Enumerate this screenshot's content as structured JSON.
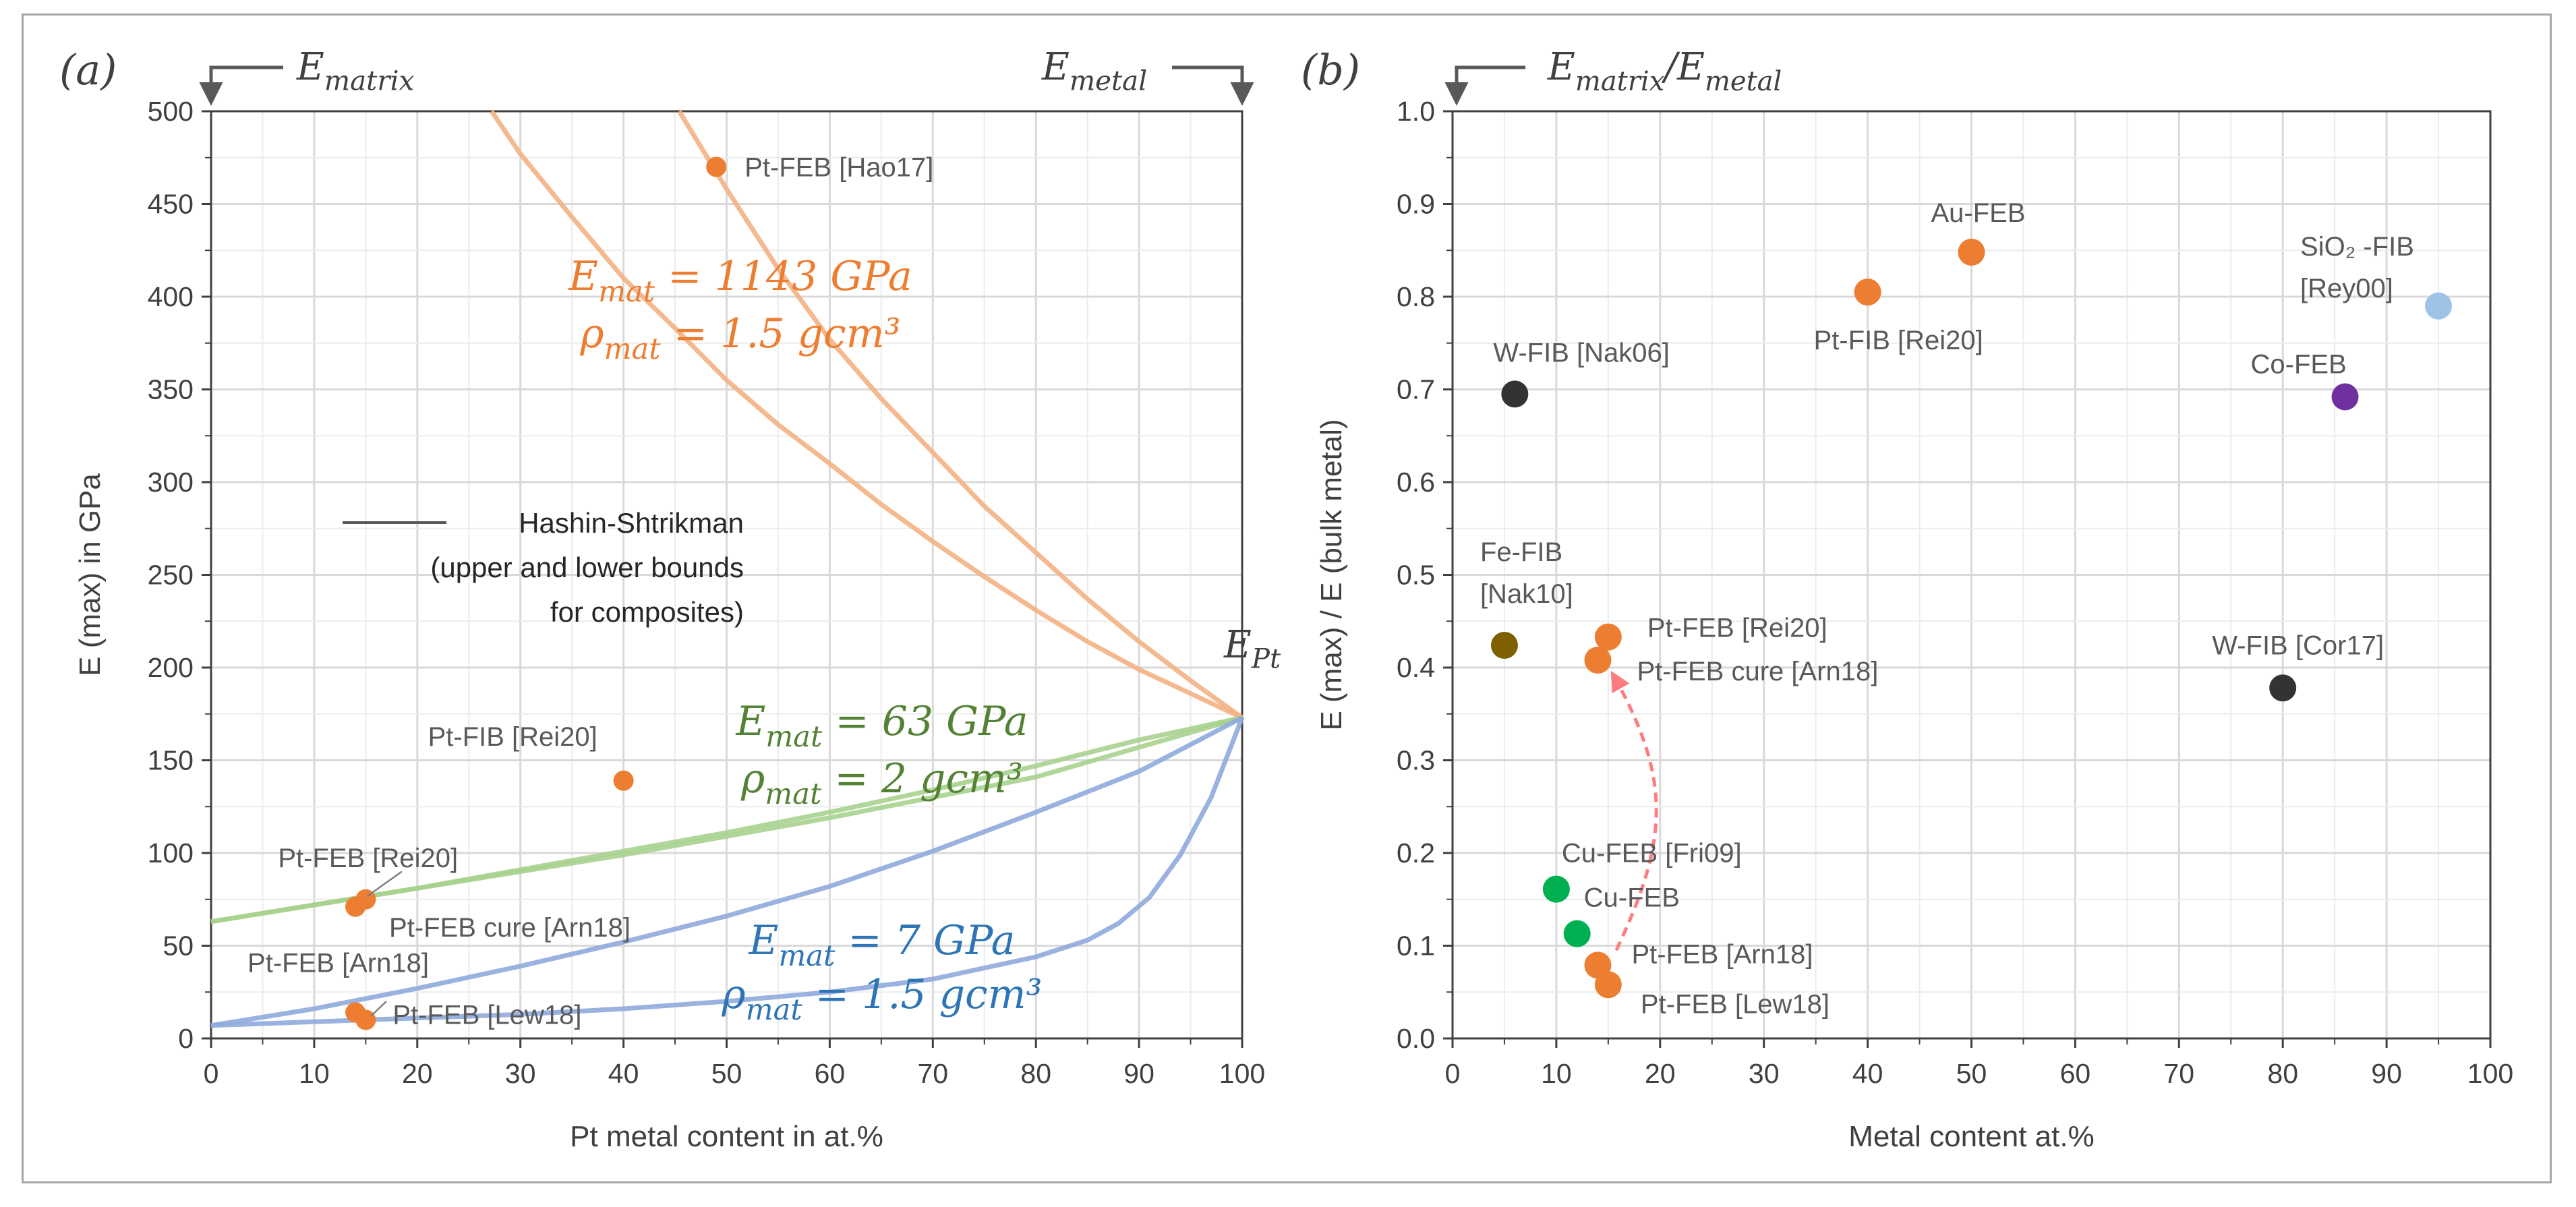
{
  "chart_data": [
    {
      "type": "scatter",
      "panel_label": "(a)",
      "xlabel": "Pt metal content in at.%",
      "ylabel": "E (max) in GPa",
      "xlim": [
        0,
        100
      ],
      "ylim": [
        0,
        500
      ],
      "xticks": [
        0,
        10,
        20,
        30,
        40,
        50,
        60,
        70,
        80,
        90,
        100
      ],
      "yticks": [
        0,
        50,
        100,
        150,
        200,
        250,
        300,
        350,
        400,
        450,
        500
      ],
      "grid": true,
      "top_left_label": {
        "base": "E",
        "sub": "matrix"
      },
      "top_right_label": {
        "base": "E",
        "sub": "metal"
      },
      "endpoint_label": {
        "base": "E",
        "sub": "Pt"
      },
      "legend": {
        "line": "Hashin-Shtrikman",
        "text": [
          "(upper and lower bounds",
          "for composites)"
        ],
        "position": "center-left"
      },
      "points": [
        {
          "x": 49,
          "y": 470,
          "label": "Pt-FEB [Hao17]",
          "color": "#ed7d31"
        },
        {
          "x": 40,
          "y": 139,
          "label": "Pt-FIB [Rei20]",
          "color": "#ed7d31"
        },
        {
          "x": 15,
          "y": 75,
          "label": "Pt-FEB [Rei20]",
          "color": "#ed7d31"
        },
        {
          "x": 14,
          "y": 71,
          "label": "Pt-FEB cure [Arn18]",
          "color": "#ed7d31"
        },
        {
          "x": 14,
          "y": 14,
          "label": "Pt-FEB [Arn18]",
          "color": "#ed7d31"
        },
        {
          "x": 15,
          "y": 10,
          "label": "Pt-FEB [Lew18]",
          "color": "#ed7d31"
        }
      ],
      "curve_groups": [
        {
          "color": "#f4b183",
          "curves": [
            {
              "x": [
                27.2,
                30,
                35,
                40,
                45,
                50,
                55,
                60,
                65,
                70,
                75,
                80,
                85,
                90,
                95,
                100
              ],
              "y": [
                500,
                477,
                443,
                410,
                383,
                355,
                331,
                310,
                288,
                268,
                249,
                231,
                214,
                199,
                186,
                173
              ]
            },
            {
              "x": [
                45.4,
                50,
                55,
                60,
                65,
                70,
                75,
                80,
                85,
                90,
                95,
                100
              ],
              "y": [
                500,
                458,
                415,
                377,
                345,
                316,
                287,
                262,
                237,
                214,
                193,
                173
              ]
            }
          ],
          "annotation": {
            "lines": [
              [
                "E",
                "mat",
                " = 1143 GPa"
              ],
              [
                "ρ",
                "mat",
                " = 1.5 gcm³"
              ]
            ],
            "color": "#ed7d31"
          }
        },
        {
          "color": "#a9d18e",
          "curves": [
            {
              "x": [
                0,
                10,
                20,
                30,
                40,
                50,
                60,
                70,
                80,
                90,
                100
              ],
              "y": [
                63,
                72,
                81,
                90,
                99,
                109,
                119,
                130,
                141,
                157,
                173
              ]
            },
            {
              "x": [
                0,
                10,
                20,
                30,
                40,
                50,
                60,
                70,
                80,
                90,
                100
              ],
              "y": [
                63,
                72,
                81,
                91,
                101,
                111,
                122,
                134,
                147,
                161,
                173
              ]
            }
          ],
          "annotation": {
            "lines": [
              [
                "E",
                "mat",
                " = 63 GPa"
              ],
              [
                "ρ",
                "mat",
                " = 2 gcm³"
              ]
            ],
            "color": "#548235"
          }
        },
        {
          "color": "#8faadc",
          "curves": [
            {
              "x": [
                0,
                10,
                20,
                30,
                40,
                50,
                60,
                70,
                80,
                90,
                100
              ],
              "y": [
                7,
                16,
                27,
                39,
                52,
                66,
                82,
                101,
                122,
                144,
                173
              ]
            },
            {
              "x": [
                0,
                10,
                20,
                30,
                40,
                50,
                60,
                70,
                80,
                85,
                88,
                91,
                94,
                97,
                100
              ],
              "y": [
                7,
                9,
                11,
                13,
                16,
                20,
                25,
                32,
                44,
                53,
                62,
                76,
                99,
                130,
                173
              ]
            }
          ],
          "annotation": {
            "lines": [
              [
                "E",
                "mat",
                " = 7 GPa"
              ],
              [
                "ρ",
                "mat",
                " = 1.5 gcm³"
              ]
            ],
            "color": "#2e75b6"
          }
        }
      ]
    },
    {
      "type": "scatter",
      "panel_label": "(b)",
      "xlabel": "Metal content at.%",
      "ylabel": "E (max) / E (bulk metal)",
      "xlim": [
        0,
        100
      ],
      "ylim": [
        0,
        1.0
      ],
      "xticks": [
        0,
        10,
        20,
        30,
        40,
        50,
        60,
        70,
        80,
        90,
        100
      ],
      "yticks": [
        "0.0",
        "0.1",
        "0.2",
        "0.3",
        "0.4",
        "0.5",
        "0.6",
        "0.7",
        "0.8",
        "0.9",
        "1.0"
      ],
      "grid": true,
      "top_left_label": {
        "base": "E",
        "sub": "matrix",
        "slash": "/",
        "base2": "E",
        "sub2": "metal"
      },
      "points": [
        {
          "x": 6,
          "y": 0.695,
          "label": "W-FIB [Nak06]",
          "color": "#333333"
        },
        {
          "x": 5,
          "y": 0.424,
          "label": [
            "Fe-FIB",
            "[Nak10]"
          ],
          "color": "#7f6000"
        },
        {
          "x": 40,
          "y": 0.805,
          "label": "Pt-FIB [Rei20]",
          "color": "#ed7d31"
        },
        {
          "x": 50,
          "y": 0.848,
          "label": "Au-FEB",
          "color": "#ed7d31"
        },
        {
          "x": 95,
          "y": 0.79,
          "label": [
            "SiO₂ -FIB",
            "[Rey00]"
          ],
          "color": "#9dc3e6"
        },
        {
          "x": 86,
          "y": 0.692,
          "label": "Co-FEB",
          "color": "#7030a0"
        },
        {
          "x": 80,
          "y": 0.378,
          "label": "W-FIB [Cor17]",
          "color": "#333333"
        },
        {
          "x": 15,
          "y": 0.433,
          "label": "Pt-FEB [Rei20]",
          "color": "#ed7d31"
        },
        {
          "x": 14,
          "y": 0.408,
          "label": "Pt-FEB cure [Arn18]",
          "color": "#ed7d31"
        },
        {
          "x": 10,
          "y": 0.161,
          "label": "Cu-FEB [Fri09]",
          "color": "#00b050"
        },
        {
          "x": 12,
          "y": 0.113,
          "label": "Cu-FEB",
          "color": "#00b050"
        },
        {
          "x": 14,
          "y": 0.079,
          "label": "Pt-FEB [Arn18]",
          "color": "#ed7d31"
        },
        {
          "x": 15,
          "y": 0.058,
          "label": "Pt-FEB [Lew18]",
          "color": "#ed7d31"
        }
      ],
      "arrow": {
        "from": [
          15,
          0.079
        ],
        "to": [
          14.8,
          0.4
        ],
        "color": "#ff7c80",
        "style": "dashed"
      }
    }
  ]
}
